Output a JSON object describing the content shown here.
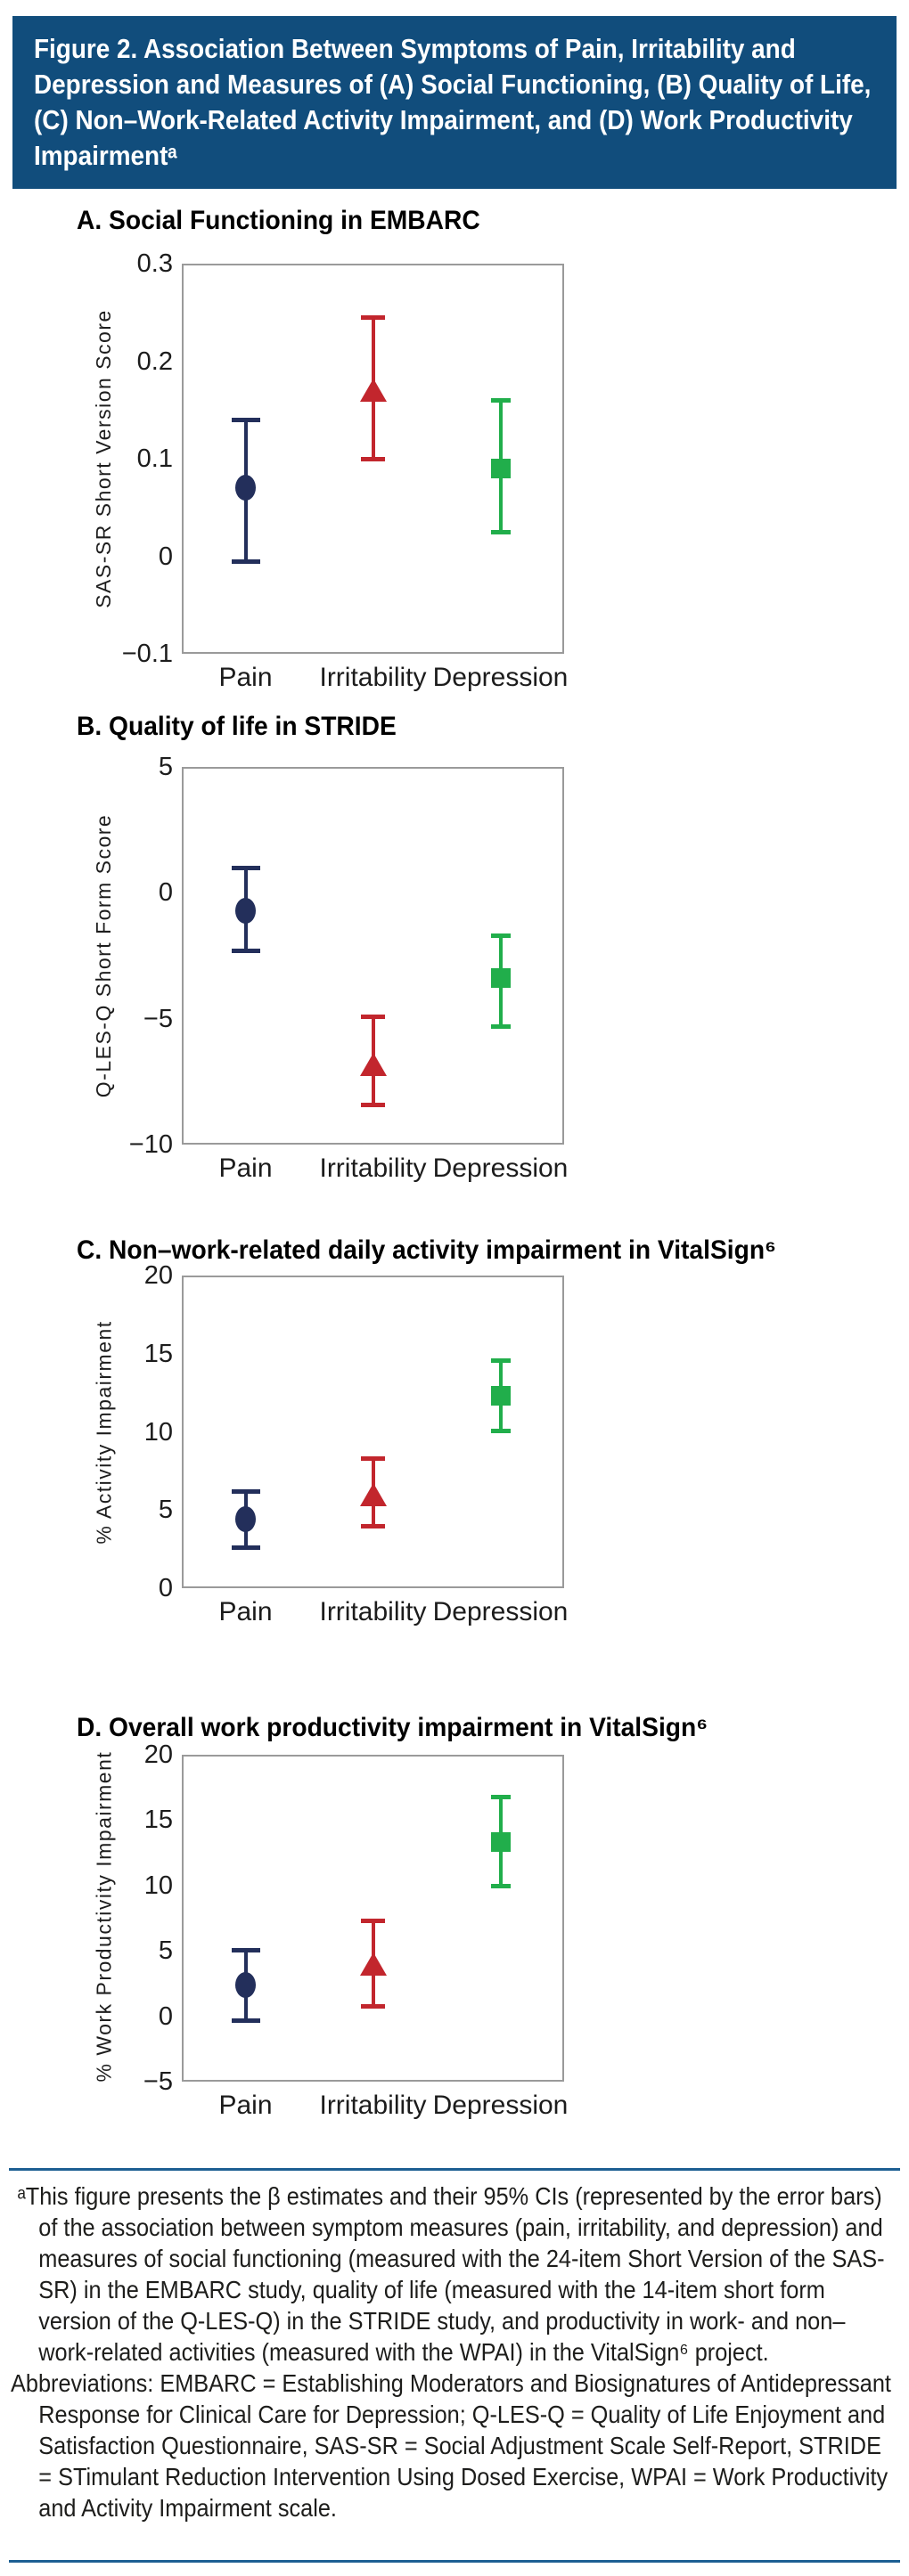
{
  "figure": {
    "header_title": "Figure 2. Association Between Symptoms of Pain, Irritability and Depression and Measures of (A) Social Functioning, (B) Quality of Life, (C) Non–Work-Related Activity Impairment, and (D) Work Productivity Impairmentᵃ",
    "colors": {
      "header_bg": "#114d7c",
      "divider": "#1d5f93",
      "pain": "#232f5b",
      "irritability": "#c2262d",
      "depression": "#21ae4b",
      "frame_border": "#9a9a9a"
    }
  },
  "chart_data": [
    {
      "panel": "A",
      "type": "scatter",
      "title": "A. Social Functioning in EMBARC",
      "ylabel": "SAS-SR Short Version Score",
      "xlabel": "",
      "grid": false,
      "legend": null,
      "ylim": [
        -0.1,
        0.3
      ],
      "yticks": [
        {
          "value": 0.3,
          "label": "0.3"
        },
        {
          "value": 0.2,
          "label": "0.2"
        },
        {
          "value": 0.1,
          "label": "0.1"
        },
        {
          "value": 0,
          "label": "0"
        },
        {
          "value": -0.1,
          "label": "−0.1"
        }
      ],
      "categories": [
        "Pain",
        "Irritability",
        "Depression"
      ],
      "series": [
        {
          "name": "Pain",
          "marker": "circle",
          "color": "#232f5b",
          "beta": 0.07,
          "ci_low": -0.005,
          "ci_high": 0.14
        },
        {
          "name": "Irritability",
          "marker": "triangle",
          "color": "#c2262d",
          "beta": 0.17,
          "ci_low": 0.1,
          "ci_high": 0.245
        },
        {
          "name": "Depression",
          "marker": "square",
          "color": "#21ae4b",
          "beta": 0.09,
          "ci_low": 0.025,
          "ci_high": 0.16
        }
      ]
    },
    {
      "panel": "B",
      "type": "scatter",
      "title": "B. Quality of life in STRIDE",
      "ylabel": "Q-LES-Q Short Form Score",
      "xlabel": "",
      "grid": false,
      "legend": null,
      "ylim": [
        -10,
        5
      ],
      "yticks": [
        {
          "value": 5,
          "label": "5"
        },
        {
          "value": 0,
          "label": "0"
        },
        {
          "value": -5,
          "label": "−5"
        },
        {
          "value": -10,
          "label": "−10"
        }
      ],
      "categories": [
        "Pain",
        "Irritability",
        "Depression"
      ],
      "series": [
        {
          "name": "Pain",
          "marker": "circle",
          "color": "#232f5b",
          "beta": -0.7,
          "ci_low": -2.3,
          "ci_high": 1.0
        },
        {
          "name": "Irritability",
          "marker": "triangle",
          "color": "#c2262d",
          "beta": -6.8,
          "ci_low": -8.4,
          "ci_high": -4.9
        },
        {
          "name": "Depression",
          "marker": "square",
          "color": "#21ae4b",
          "beta": -3.4,
          "ci_low": -5.3,
          "ci_high": -1.7
        }
      ]
    },
    {
      "panel": "C",
      "type": "scatter",
      "title": "C. Non–work-related daily activity impairment in VitalSign⁶",
      "ylabel": "% Activity Impairment",
      "xlabel": "",
      "grid": false,
      "legend": null,
      "ylim": [
        0,
        20
      ],
      "yticks": [
        {
          "value": 20,
          "label": "20"
        },
        {
          "value": 15,
          "label": "15"
        },
        {
          "value": 10,
          "label": "10"
        },
        {
          "value": 5,
          "label": "5"
        },
        {
          "value": 0,
          "label": "0"
        }
      ],
      "categories": [
        "Pain",
        "Irritability",
        "Depression"
      ],
      "series": [
        {
          "name": "Pain",
          "marker": "circle",
          "color": "#232f5b",
          "beta": 4.4,
          "ci_low": 2.6,
          "ci_high": 6.2
        },
        {
          "name": "Irritability",
          "marker": "triangle",
          "color": "#c2262d",
          "beta": 6.0,
          "ci_low": 4.0,
          "ci_high": 8.3
        },
        {
          "name": "Depression",
          "marker": "square",
          "color": "#21ae4b",
          "beta": 12.3,
          "ci_low": 10.1,
          "ci_high": 14.6
        }
      ]
    },
    {
      "panel": "D",
      "type": "scatter",
      "title": "D. Overall work productivity impairment in VitalSign⁶",
      "ylabel": "% Work Productivity Impairment",
      "xlabel": "",
      "grid": false,
      "legend": null,
      "ylim": [
        -5,
        20
      ],
      "yticks": [
        {
          "value": 20,
          "label": "20"
        },
        {
          "value": 15,
          "label": "15"
        },
        {
          "value": 10,
          "label": "10"
        },
        {
          "value": 5,
          "label": "5"
        },
        {
          "value": 0,
          "label": "0"
        },
        {
          "value": -5,
          "label": "−5"
        }
      ],
      "categories": [
        "Pain",
        "Irritability",
        "Depression"
      ],
      "series": [
        {
          "name": "Pain",
          "marker": "circle",
          "color": "#232f5b",
          "beta": 2.4,
          "ci_low": -0.3,
          "ci_high": 5.1
        },
        {
          "name": "Irritability",
          "marker": "triangle",
          "color": "#c2262d",
          "beta": 4.0,
          "ci_low": 0.8,
          "ci_high": 7.3
        },
        {
          "name": "Depression",
          "marker": "square",
          "color": "#21ae4b",
          "beta": 13.3,
          "ci_low": 10.0,
          "ci_high": 16.8
        }
      ]
    }
  ],
  "footnote": {
    "note": "ᵃThis figure presents the β estimates and their 95% CIs (represented by the error bars) of the association between symptom measures (pain, irritability, and depression) and measures of social functioning (measured with the 24-item Short Version of the SAS-SR) in the EMBARC study, quality of life (measured with the 14-item short form version of the Q-LES-Q) in the STRIDE study, and productivity in work- and non–work-related activities (measured with the WPAI) in the VitalSign⁶ project.",
    "abbreviations": "Abbreviations: EMBARC = Establishing Moderators and Biosignatures of Antidepressant Response for Clinical Care for Depression; Q-LES-Q = Quality of Life Enjoyment and Satisfaction Questionnaire, SAS-SR = Social Adjustment Scale Self-Report, STRIDE = STimulant Reduction Intervention Using Dosed Exercise, WPAI = Work Productivity and Activity Impairment scale."
  }
}
